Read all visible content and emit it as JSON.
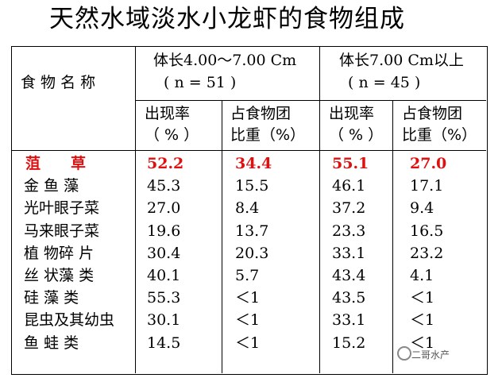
{
  "title": "天然水域淡水小龙虾的食物组成",
  "header": {
    "name_col": "食 物 名 称",
    "group1_line1": "体长4.00～7.00 Cm",
    "group1_line2": "( n = 51 )",
    "group2_line1": "体长7.00 Cm以上",
    "group2_line2": "( n = 45 )",
    "occ_line1": "出现率",
    "occ_line2": "（ % ）",
    "prop_line1": "占食物团",
    "prop_line2": "比重（%）"
  },
  "rows": [
    {
      "name": "菹　　草",
      "g1_occ": "52.2",
      "g1_prop": "34.4",
      "g2_occ": "55.1",
      "g2_prop": "27.0",
      "highlight": true
    },
    {
      "name": "金 鱼 藻",
      "g1_occ": "45.3",
      "g1_prop": "15.5",
      "g2_occ": "46.1",
      "g2_prop": "17.1"
    },
    {
      "name": "光叶眼子菜",
      "g1_occ": "27.0",
      "g1_prop": "8.4",
      "g2_occ": "37.2",
      "g2_prop": "9.4"
    },
    {
      "name": "马来眼子菜",
      "g1_occ": "19.6",
      "g1_prop": "13.7",
      "g2_occ": "23.3",
      "g2_prop": "16.5"
    },
    {
      "name": "植 物碎 片",
      "g1_occ": "30.4",
      "g1_prop": "20.3",
      "g2_occ": "33.1",
      "g2_prop": "23.2"
    },
    {
      "name": "丝 状藻 类",
      "g1_occ": "40.1",
      "g1_prop": "5.7",
      "g2_occ": "43.4",
      "g2_prop": "4.1"
    },
    {
      "name": "硅 藻 类",
      "g1_occ": "55.3",
      "g1_prop": "＜1",
      "g2_occ": "43.5",
      "g2_prop": "＜1"
    },
    {
      "name": "昆虫及其幼虫",
      "g1_occ": "30.1",
      "g1_prop": "＜1",
      "g2_occ": "33.1",
      "g2_prop": "＜1"
    },
    {
      "name": "鱼 蛙 类",
      "g1_occ": "14.5",
      "g1_prop": "＜1",
      "g2_occ": "15.2",
      "g2_prop": "＜1"
    }
  ],
  "watermark": "二哥水产",
  "colors": {
    "highlight": "#e01010"
  }
}
